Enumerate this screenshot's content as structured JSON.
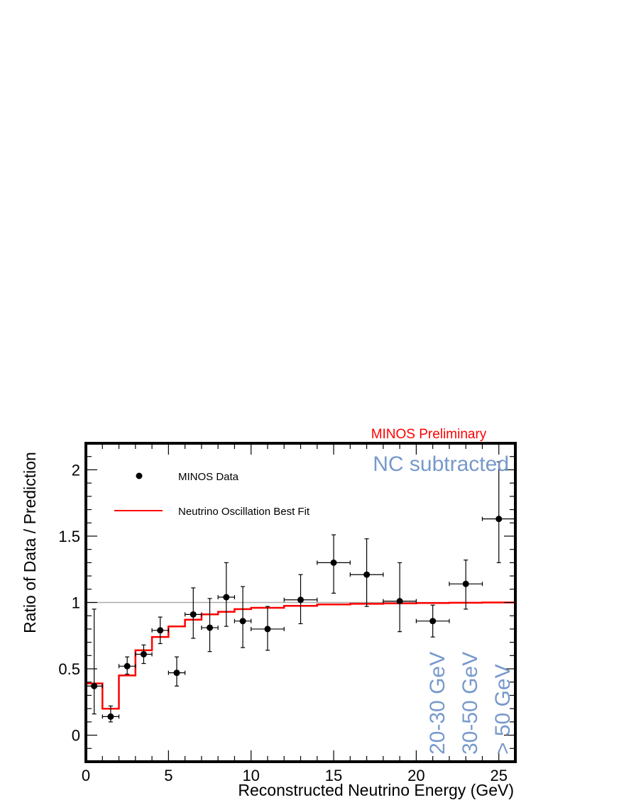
{
  "chart_data": {
    "type": "scatter",
    "xlabel": "Reconstructed Neutrino Energy (GeV)",
    "ylabel": "Ratio of Data / Prediction",
    "xlim": [
      0,
      26
    ],
    "ylim": [
      -0.2,
      2.2
    ],
    "x_ticks": [
      0,
      5,
      10,
      15,
      20,
      25
    ],
    "y_ticks": [
      0,
      0.5,
      1,
      1.5,
      2
    ],
    "reference_line": 1,
    "grid": false,
    "legend_position": "top-left",
    "colors": {
      "data": "#000000",
      "fit": "#ff0000",
      "preliminary": "#ff0000",
      "annotation": "#7799cc",
      "reference": "#aaaaaa"
    },
    "annotations": {
      "preliminary": "MINOS Preliminary",
      "nc": "NC subtracted",
      "bins": [
        "20-30 GeV",
        "30-50 GeV",
        "> 50 GeV"
      ]
    },
    "series": [
      {
        "name": "MINOS Data",
        "kind": "points-with-errors",
        "points": [
          {
            "x": 0.5,
            "xerr": 0.5,
            "y": 0.37,
            "lo": 0.16,
            "hi": 0.95
          },
          {
            "x": 1.5,
            "xerr": 0.5,
            "y": 0.14,
            "lo": 0.1,
            "hi": 0.22
          },
          {
            "x": 2.5,
            "xerr": 0.5,
            "y": 0.52,
            "lo": 0.46,
            "hi": 0.59
          },
          {
            "x": 3.5,
            "xerr": 0.5,
            "y": 0.61,
            "lo": 0.54,
            "hi": 0.68
          },
          {
            "x": 4.5,
            "xerr": 0.5,
            "y": 0.79,
            "lo": 0.69,
            "hi": 0.89
          },
          {
            "x": 5.5,
            "xerr": 0.5,
            "y": 0.47,
            "lo": 0.37,
            "hi": 0.59
          },
          {
            "x": 6.5,
            "xerr": 0.5,
            "y": 0.91,
            "lo": 0.73,
            "hi": 1.11
          },
          {
            "x": 7.5,
            "xerr": 0.5,
            "y": 0.81,
            "lo": 0.63,
            "hi": 1.03
          },
          {
            "x": 8.5,
            "xerr": 0.5,
            "y": 1.04,
            "lo": 0.82,
            "hi": 1.3
          },
          {
            "x": 9.5,
            "xerr": 0.5,
            "y": 0.86,
            "lo": 0.66,
            "hi": 1.12
          },
          {
            "x": 11,
            "xerr": 1,
            "y": 0.8,
            "lo": 0.64,
            "hi": 0.97
          },
          {
            "x": 13,
            "xerr": 1,
            "y": 1.02,
            "lo": 0.84,
            "hi": 1.21
          },
          {
            "x": 15,
            "xerr": 1,
            "y": 1.3,
            "lo": 1.07,
            "hi": 1.51
          },
          {
            "x": 17,
            "xerr": 1,
            "y": 1.21,
            "lo": 0.97,
            "hi": 1.48
          },
          {
            "x": 19,
            "xerr": 1,
            "y": 1.01,
            "lo": 0.78,
            "hi": 1.3
          },
          {
            "x": 21,
            "xerr": 1,
            "y": 0.86,
            "lo": 0.74,
            "hi": 0.98
          },
          {
            "x": 23,
            "xerr": 1,
            "y": 1.14,
            "lo": 0.95,
            "hi": 1.32
          },
          {
            "x": 25,
            "xerr": 1,
            "y": 1.63,
            "lo": 1.3,
            "hi": 2.06
          }
        ]
      },
      {
        "name": "Neutrino Oscillation Best Fit",
        "kind": "step",
        "edges": [
          0,
          1,
          2,
          3,
          4,
          5,
          6,
          7,
          8,
          9,
          10,
          12,
          14,
          16,
          18,
          20,
          22,
          24,
          26
        ],
        "values": [
          0.39,
          0.2,
          0.45,
          0.64,
          0.74,
          0.82,
          0.87,
          0.91,
          0.93,
          0.95,
          0.96,
          0.975,
          0.985,
          0.99,
          0.993,
          0.996,
          0.998,
          1.0
        ]
      }
    ]
  }
}
